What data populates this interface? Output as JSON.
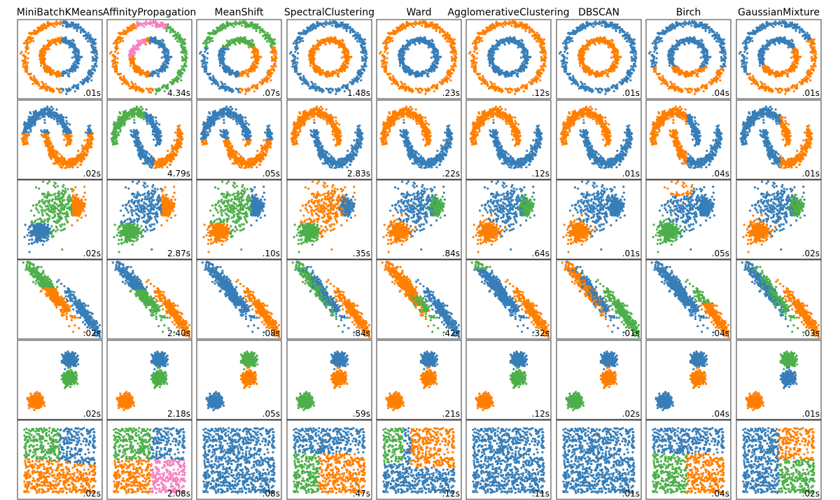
{
  "figure": {
    "columns": [
      "MiniBatchKMeans",
      "AffinityPropagation",
      "MeanShift",
      "SpectralClustering",
      "Ward",
      "AgglomerativeClustering",
      "DBSCAN",
      "Birch",
      "GaussianMixture"
    ],
    "timings": [
      [
        ".01s",
        "4.34s",
        ".07s",
        "1.48s",
        ".23s",
        ".12s",
        ".01s",
        ".04s",
        ".01s"
      ],
      [
        ".02s",
        "4.79s",
        ".05s",
        "2.83s",
        ".22s",
        ".12s",
        ".01s",
        ".04s",
        ".01s"
      ],
      [
        ".02s",
        "2.87s",
        ".10s",
        ".35s",
        ".84s",
        ".64s",
        ".01s",
        ".05s",
        ".02s"
      ],
      [
        ".02s",
        "2.40s",
        ".08s",
        ".84s",
        ".42s",
        ".32s",
        ".01s",
        ".04s",
        ".03s"
      ],
      [
        ".02s",
        "2.18s",
        ".05s",
        ".59s",
        ".21s",
        ".12s",
        ".02s",
        ".04s",
        ".01s"
      ],
      [
        ".02s",
        "2.08s",
        ".08s",
        ".47s",
        ".12s",
        ".11s",
        ".01s",
        ".04s",
        ".02s"
      ]
    ],
    "palette": {
      "blue": "#377eb8",
      "orange": "#ff7f00",
      "green": "#4daf4a",
      "pink": "#f781bf",
      "panel_border": "#333333"
    }
  },
  "chart_data": {
    "type": "scatter",
    "layout": "grid of 6 datasets (rows) x 9 clustering algorithms (columns)",
    "axes": "no ticks, no axis labels",
    "datasets": [
      "noisy circles",
      "noisy moons",
      "varied-variance blobs",
      "anisotropic blobs",
      "blobs",
      "no structure"
    ],
    "cluster_colors_used": [
      "blue",
      "orange",
      "green",
      "pink"
    ]
  }
}
